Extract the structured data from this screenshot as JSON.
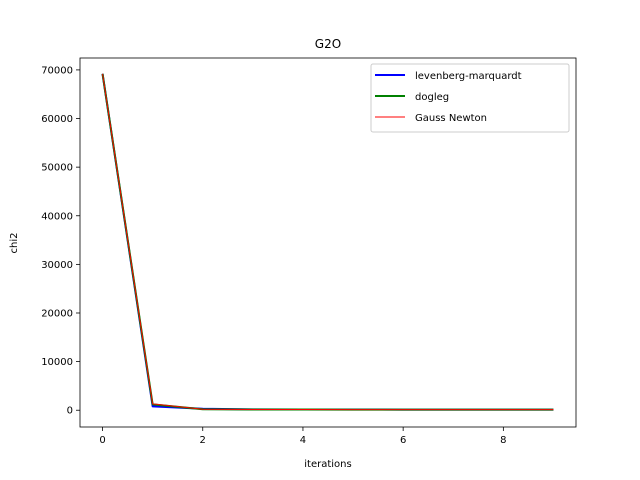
{
  "chart_data": {
    "type": "line",
    "title": "G2O",
    "xlabel": "iterations",
    "ylabel": "chi2",
    "xlim": [
      -0.45,
      9.45
    ],
    "ylim": [
      -3450,
      72450
    ],
    "x_ticks": [
      0,
      2,
      4,
      6,
      8
    ],
    "y_ticks": [
      0,
      10000,
      20000,
      30000,
      40000,
      50000,
      60000,
      70000
    ],
    "grid": false,
    "legend_position": "top-right",
    "series": [
      {
        "name": "levenberg-marquardt",
        "color": "#0000ff",
        "line_width": 2,
        "x": [
          0,
          1,
          2,
          3,
          4,
          5,
          6,
          7,
          8,
          9
        ],
        "y": [
          69200,
          800,
          300,
          180,
          150,
          140,
          135,
          130,
          128,
          125
        ]
      },
      {
        "name": "dogleg",
        "color": "#008000",
        "line_width": 2,
        "x": [
          0,
          1,
          2,
          3,
          4,
          5,
          6,
          7,
          8,
          9
        ],
        "y": [
          69200,
          1200,
          200,
          150,
          140,
          135,
          130,
          128,
          126,
          125
        ]
      },
      {
        "name": "Gauss Newton",
        "color": "#ff0000",
        "line_width": 1,
        "x": [
          0,
          1,
          2,
          3,
          4,
          5,
          6,
          7,
          8,
          9
        ],
        "y": [
          69200,
          1300,
          200,
          150,
          140,
          135,
          130,
          128,
          126,
          125
        ]
      }
    ]
  }
}
